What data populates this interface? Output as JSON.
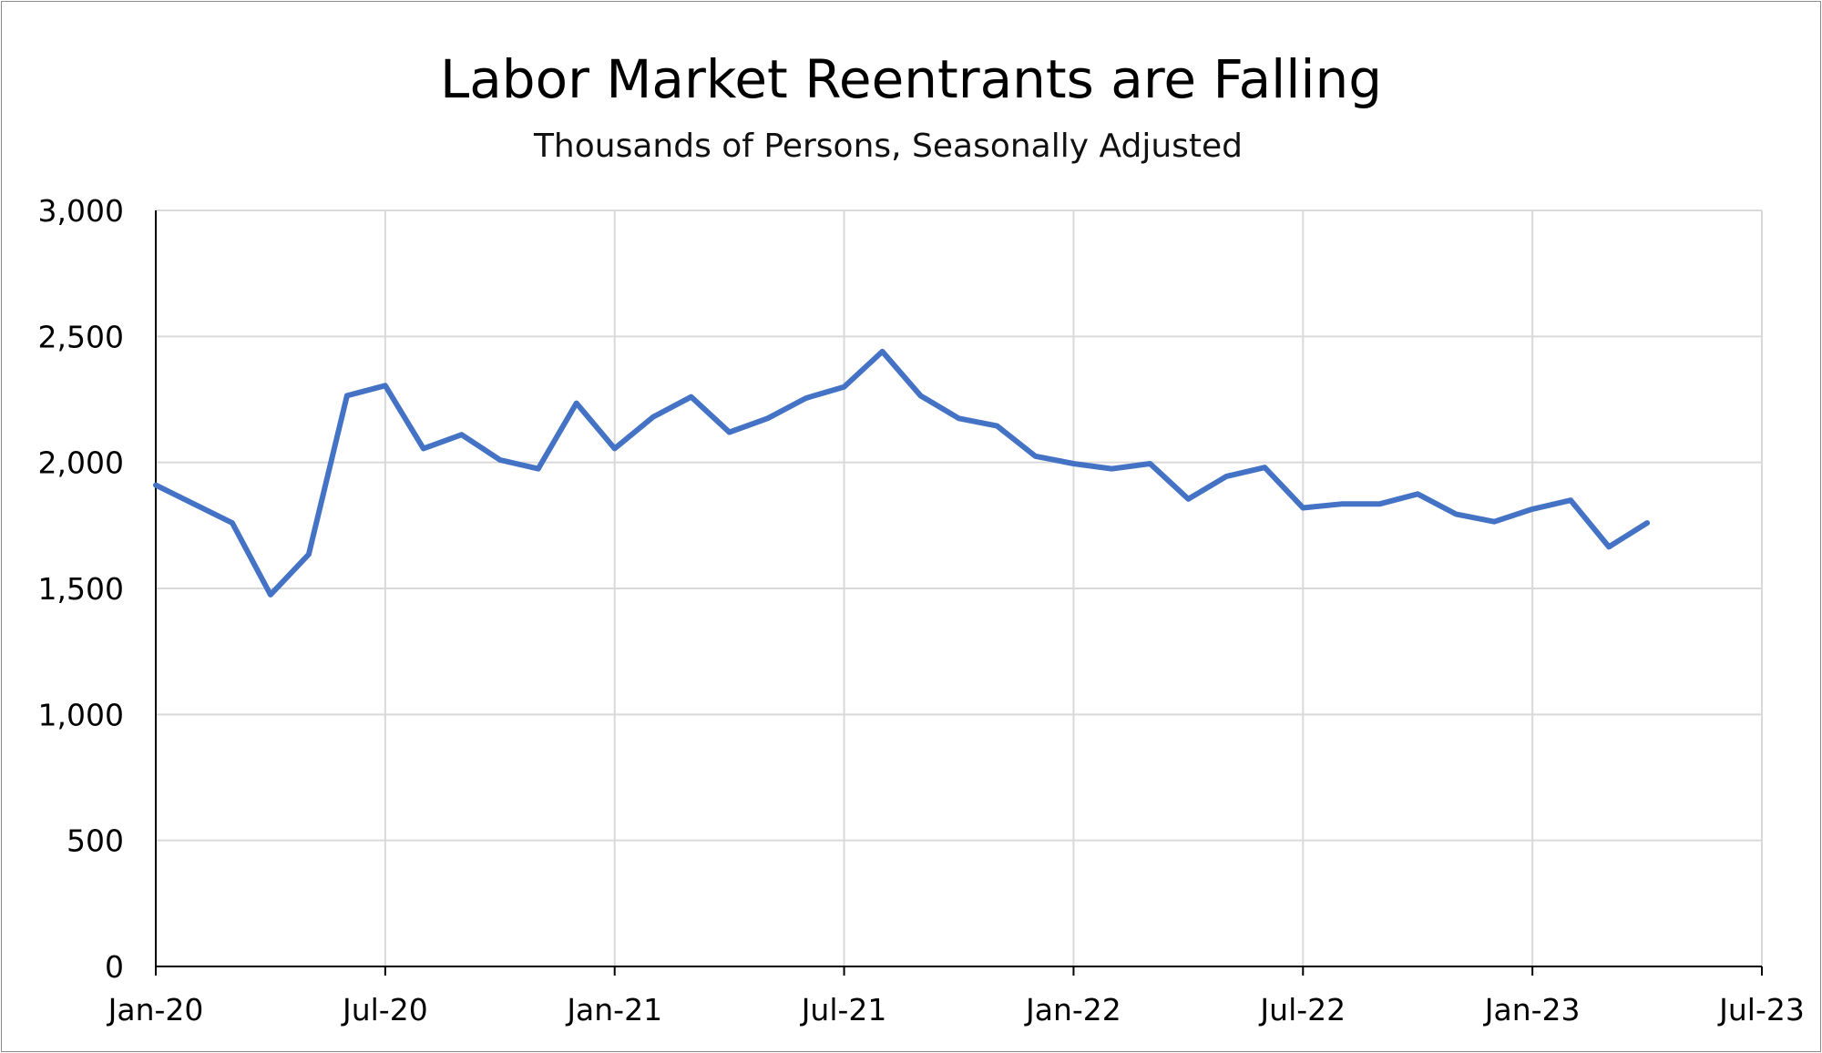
{
  "chart_data": {
    "type": "line",
    "title": "Labor Market Reentrants are Falling",
    "subtitle": "Thousands of Persons, Seasonally Adjusted",
    "xlabel": "",
    "ylabel": "",
    "ylim": [
      0,
      3000
    ],
    "y_ticks": [
      0,
      500,
      1000,
      1500,
      2000,
      2500,
      3000
    ],
    "y_tick_labels": [
      "0",
      "500",
      "1,000",
      "1,500",
      "2,000",
      "2,500",
      "3,000"
    ],
    "x_ticks": [
      "2020-01",
      "2020-07",
      "2021-01",
      "2021-07",
      "2022-01",
      "2022-07",
      "2023-01",
      "2023-07"
    ],
    "x_tick_labels": [
      "Jan-20",
      "Jul-20",
      "Jan-21",
      "Jul-21",
      "Jan-22",
      "Jul-22",
      "Jan-23",
      "Jul-23"
    ],
    "xlim": [
      "2020-01",
      "2023-07"
    ],
    "grid": true,
    "legend": "none",
    "series": [
      {
        "color": "#4472c4",
        "x": [
          "2020-01",
          "2020-02",
          "2020-03",
          "2020-04",
          "2020-05",
          "2020-06",
          "2020-07",
          "2020-08",
          "2020-09",
          "2020-10",
          "2020-11",
          "2020-12",
          "2021-01",
          "2021-02",
          "2021-03",
          "2021-04",
          "2021-05",
          "2021-06",
          "2021-07",
          "2021-08",
          "2021-09",
          "2021-10",
          "2021-11",
          "2021-12",
          "2022-01",
          "2022-02",
          "2022-03",
          "2022-04",
          "2022-05",
          "2022-06",
          "2022-07",
          "2022-08",
          "2022-09",
          "2022-10",
          "2022-11",
          "2022-12",
          "2023-01",
          "2023-02",
          "2023-03",
          "2023-04"
        ],
        "values": [
          1910,
          1835,
          1760,
          1475,
          1635,
          2265,
          2305,
          2055,
          2110,
          2010,
          1975,
          2235,
          2055,
          2180,
          2260,
          2120,
          2175,
          2255,
          2300,
          2440,
          2265,
          2175,
          2145,
          2025,
          1995,
          1975,
          1995,
          1855,
          1945,
          1980,
          1820,
          1835,
          1835,
          1875,
          1795,
          1765,
          1815,
          1850,
          1665,
          1760
        ]
      }
    ]
  }
}
